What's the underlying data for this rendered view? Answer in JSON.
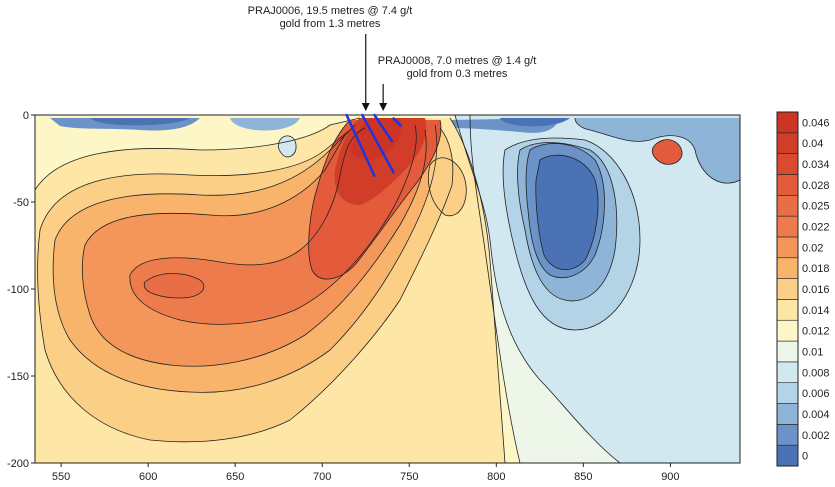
{
  "chart_data": {
    "type": "heatmap",
    "title": "",
    "xlabel": "",
    "ylabel": "",
    "xlim": [
      535,
      940
    ],
    "ylim": [
      -200,
      0
    ],
    "x_ticks": [
      550,
      600,
      650,
      700,
      750,
      800,
      850,
      900
    ],
    "y_ticks": [
      0,
      -50,
      -100,
      -150,
      -200
    ],
    "colorbar": {
      "levels": [
        0,
        0.002,
        0.004,
        0.006,
        0.008,
        0.01,
        0.012,
        0.014,
        0.016,
        0.018,
        0.02,
        0.022,
        0.025,
        0.028,
        0.034,
        0.04,
        0.046
      ],
      "labels": [
        "0",
        "0.002",
        "0.004",
        "0.006",
        "0.008",
        "0.01",
        "0.012",
        "0.014",
        "0.016",
        "0.018",
        "0.02",
        "0.022",
        "0.025",
        "0.028",
        "0.034",
        "0.04",
        "0.046"
      ],
      "colors": [
        "#4a72b5",
        "#6b93c7",
        "#8eb5d8",
        "#b3d4e7",
        "#d2e8f1",
        "#eef6ea",
        "#fdf6c6",
        "#fde6a6",
        "#fccf86",
        "#f9b46c",
        "#f49659",
        "#ee7b4b",
        "#e96d45",
        "#e35b3b",
        "#da4a31",
        "#d23d2a",
        "#cc3425"
      ]
    },
    "annotations": [
      {
        "lines": [
          "PRAJ0006, 19.5 metres @ 7.4 g/t",
          "gold from 1.3 metres"
        ],
        "x": 725,
        "y": 0
      },
      {
        "lines": [
          "PRAJ0008, 7.0 metres @ 1.4 g/t",
          "gold from 0.3 metres"
        ],
        "x": 735,
        "y": 0
      }
    ],
    "drill_holes": [
      {
        "x0": 714,
        "y0": 0,
        "x1": 730,
        "y1": -35
      },
      {
        "x0": 723,
        "y0": 0,
        "x1": 741,
        "y1": -33
      },
      {
        "x0": 730,
        "y0": 0,
        "x1": 740,
        "y1": -15
      },
      {
        "x0": 741,
        "y0": -2,
        "x1": 745,
        "y1": -6
      }
    ],
    "grid": false,
    "legend": "colorbar-right"
  }
}
